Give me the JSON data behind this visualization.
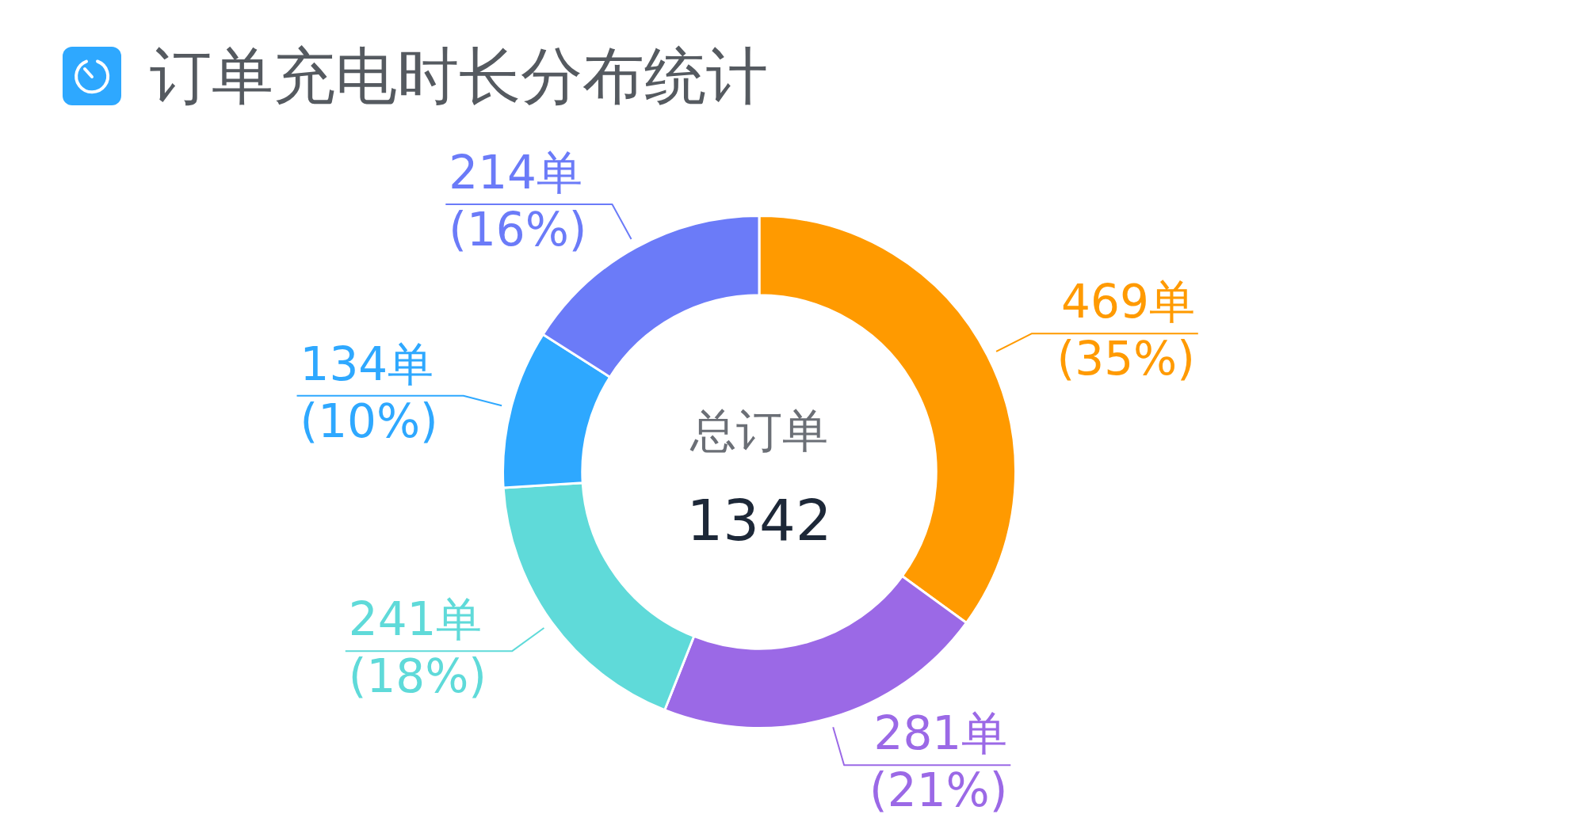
{
  "chart_data": {
    "type": "donut",
    "title": "订单充电时长分布统计",
    "categories": [
      null,
      null,
      null,
      null,
      null
    ],
    "values": [
      469,
      281,
      241,
      134,
      214
    ],
    "colors": [
      "#ff9a00",
      "#9b69e6",
      "#5fdad9",
      "#2ea8ff",
      "#6b7bf8"
    ],
    "value_labels": [
      "469单\n(35%)",
      "281单\n(21%)",
      "241单\n(18%)",
      "134单\n(10%)",
      "214单\n(16%)"
    ],
    "annotations": [
      "总订单",
      "1342"
    ]
  }
}
